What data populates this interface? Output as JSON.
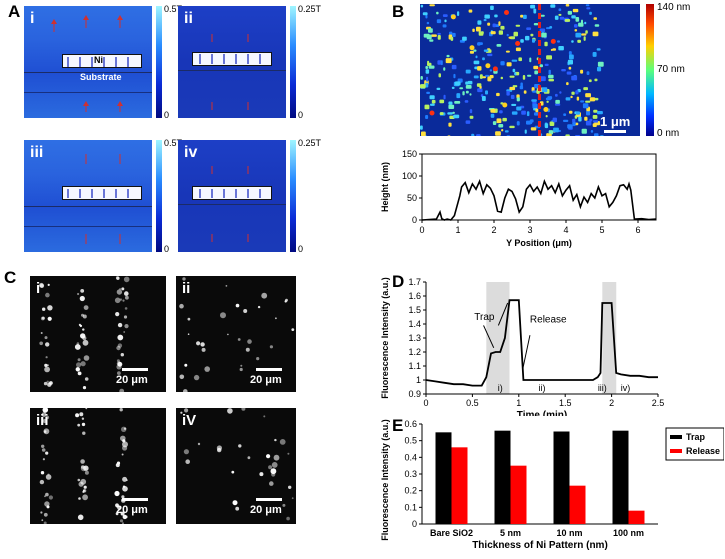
{
  "panel_labels": {
    "a": "A",
    "b": "B",
    "c": "C",
    "d": "D",
    "e": "E"
  },
  "panel_a": {
    "subpanels": [
      {
        "roman": "i",
        "colorbar_max": "0.5T",
        "colorbar_min": "0",
        "direction": "up"
      },
      {
        "roman": "ii",
        "colorbar_max": "0.25T",
        "colorbar_min": "0",
        "direction": "up"
      },
      {
        "roman": "iii",
        "colorbar_max": "0.5T",
        "colorbar_min": "0",
        "direction": "down"
      },
      {
        "roman": "iv",
        "colorbar_max": "0.25T",
        "colorbar_min": "0",
        "direction": "down"
      }
    ],
    "label_ni": "Ni",
    "label_substrate": "Substrate"
  },
  "panel_b": {
    "colorbar_labels": {
      "top": "140 nm",
      "mid": "70 nm",
      "bottom": "0 nm"
    },
    "scalebar": "1 μm",
    "chart_data": {
      "type": "line",
      "xlabel": "Y Position (μm)",
      "ylabel": "Height (nm)",
      "xlim": [
        0,
        6.5
      ],
      "ylim": [
        0,
        150
      ],
      "xticks": [
        "0",
        "1",
        "2",
        "3",
        "4",
        "5",
        "6"
      ],
      "yticks": [
        "0",
        "50",
        "100",
        "150"
      ],
      "x": [
        0,
        0.4,
        0.5,
        0.55,
        0.62,
        0.7,
        0.8,
        0.9,
        1.0,
        1.05,
        1.1,
        1.2,
        1.3,
        1.4,
        1.5,
        1.6,
        1.7,
        1.8,
        1.9,
        2.0,
        2.1,
        2.2,
        2.3,
        2.4,
        2.5,
        2.6,
        2.7,
        2.8,
        2.9,
        3.0,
        3.1,
        3.2,
        3.3,
        3.4,
        3.5,
        3.6,
        3.7,
        3.8,
        3.9,
        4.0,
        4.1,
        4.2,
        4.3,
        4.4,
        4.5,
        4.6,
        4.7,
        4.8,
        4.9,
        5.0,
        5.1,
        5.2,
        5.3,
        5.4,
        5.5,
        5.6,
        5.7,
        5.75,
        5.8,
        5.9,
        6.1,
        6.3,
        6.5
      ],
      "y": [
        0,
        2,
        18,
        3,
        0,
        2,
        0,
        10,
        40,
        55,
        75,
        85,
        62,
        82,
        70,
        88,
        60,
        80,
        72,
        55,
        20,
        18,
        50,
        70,
        65,
        48,
        18,
        30,
        70,
        80,
        65,
        75,
        60,
        88,
        70,
        78,
        62,
        82,
        55,
        68,
        78,
        45,
        58,
        30,
        52,
        40,
        60,
        50,
        75,
        55,
        60,
        30,
        40,
        55,
        78,
        80,
        70,
        82,
        68,
        2,
        3,
        1,
        2
      ]
    }
  },
  "panel_c": {
    "subpanels": [
      {
        "roman": "i",
        "scalebar": "20 μm"
      },
      {
        "roman": "ii",
        "scalebar": "20 μm"
      },
      {
        "roman": "iii",
        "scalebar": "20 μm"
      },
      {
        "roman": "iV",
        "scalebar": "20 μm"
      }
    ]
  },
  "panel_d": {
    "chart_data": {
      "type": "line",
      "xlabel": "Time (min)",
      "ylabel": "Fluorescence Intensity (a.u.)",
      "xlim": [
        0,
        2.5
      ],
      "ylim": [
        0.9,
        1.7
      ],
      "xticks": [
        "0",
        "0.5",
        "1",
        "1.5",
        "2",
        "2.5"
      ],
      "yticks": [
        "0.9",
        "1",
        "1.1",
        "1.2",
        "1.3",
        "1.4",
        "1.5",
        "1.6",
        "1.7"
      ],
      "x": [
        0,
        0.1,
        0.2,
        0.3,
        0.4,
        0.5,
        0.6,
        0.65,
        0.7,
        0.75,
        0.8,
        0.85,
        0.9,
        0.95,
        1.0,
        1.05,
        1.1,
        1.2,
        1.3,
        1.5,
        1.7,
        1.8,
        1.85,
        1.88,
        1.9,
        1.95,
        2.0,
        2.05,
        2.1,
        2.2,
        2.3,
        2.4,
        2.5
      ],
      "y": [
        1.0,
        0.99,
        0.98,
        0.97,
        0.97,
        0.96,
        0.96,
        1.02,
        1.19,
        1.2,
        1.2,
        1.3,
        1.57,
        1.57,
        1.57,
        1.0,
        1.0,
        1.0,
        1.0,
        1.0,
        1.0,
        1.0,
        1.02,
        1.05,
        1.55,
        1.55,
        1.55,
        1.05,
        1.04,
        1.03,
        1.03,
        1.02,
        1.02
      ],
      "shaded_regions": [
        [
          0.65,
          0.9
        ],
        [
          1.9,
          2.05
        ]
      ],
      "annotations": {
        "trap": "Trap",
        "release": "Release"
      },
      "phase_labels": [
        "i)",
        "ii)",
        "iii)",
        "iv)"
      ]
    }
  },
  "panel_e": {
    "chart_data": {
      "type": "bar",
      "categories": [
        "Bare SiO2",
        "5 nm",
        "10 nm",
        "100 nm"
      ],
      "series": [
        {
          "name": "Trap",
          "values": [
            0.55,
            0.56,
            0.555,
            0.56
          ],
          "color": "#000000"
        },
        {
          "name": "Release",
          "values": [
            0.46,
            0.35,
            0.23,
            0.08
          ],
          "color": "#ff0000"
        }
      ],
      "xlabel": "Thickness of Ni Pattern (nm)",
      "ylabel": "Fluorescence Intensity (a.u.)",
      "ylim": [
        0,
        0.6
      ],
      "yticks": [
        "0",
        "0.1",
        "0.2",
        "0.3",
        "0.4",
        "0.5",
        "0.6"
      ],
      "legend_position": "right"
    }
  }
}
